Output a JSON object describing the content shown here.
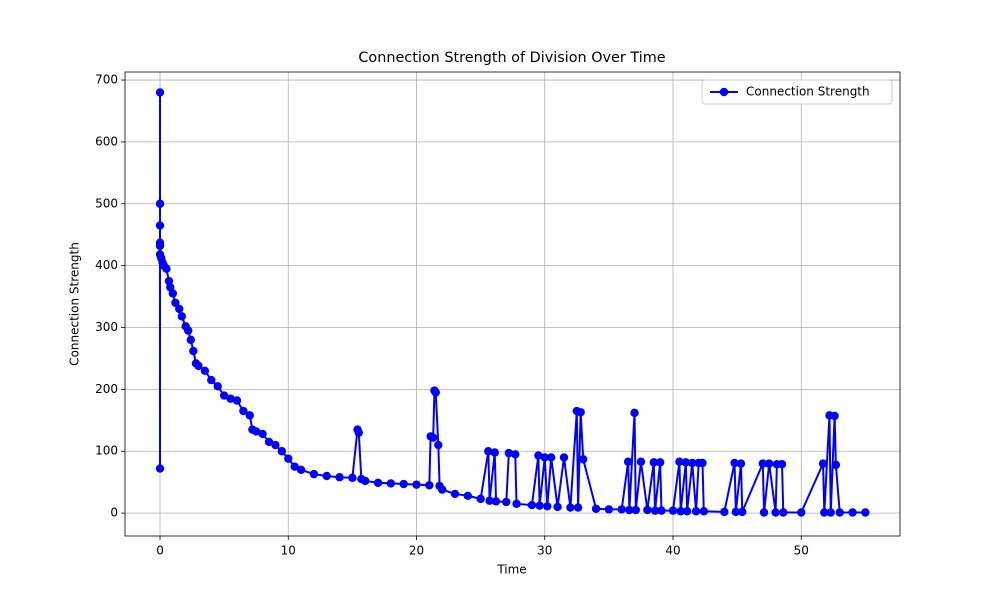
{
  "chart_data": {
    "type": "line",
    "title": "Connection Strength of Division Over Time",
    "x_label": "Time",
    "y_label": "Connection Strength",
    "x": [
      0,
      0,
      0,
      0,
      0,
      0,
      0,
      0.1,
      0.2,
      0.3,
      0.5,
      0.7,
      0.8,
      1.0,
      1.2,
      1.5,
      1.7,
      2.0,
      2.2,
      2.4,
      2.6,
      2.8,
      3.0,
      3.5,
      4.0,
      4.5,
      5.0,
      5.5,
      6.0,
      6.5,
      7.0,
      7.2,
      7.5,
      8.0,
      8.5,
      9.0,
      9.5,
      10.0,
      10.5,
      11,
      12,
      13,
      14,
      15,
      15.4,
      15.5,
      15.7,
      16,
      17,
      18,
      19,
      20,
      21,
      21.1,
      21.3,
      21.4,
      21.5,
      21.7,
      21.8,
      22,
      23,
      24,
      25,
      25.6,
      25.7,
      26.1,
      26.2,
      27,
      27.2,
      27.7,
      27.8,
      29,
      29.5,
      29.6,
      30,
      30.2,
      30.5,
      31,
      31.5,
      32,
      32.5,
      32.6,
      32.8,
      33,
      34,
      35,
      36,
      36.5,
      36.6,
      37,
      37.1,
      37.5,
      38,
      38.5,
      38.6,
      39,
      39.1,
      40,
      40.5,
      40.6,
      41,
      41.1,
      41.5,
      41.8,
      42,
      42.3,
      42.4,
      44,
      44.8,
      44.9,
      45.3,
      45.4,
      47,
      47.1,
      47.5,
      48,
      48.1,
      48.5,
      48.6,
      50,
      51.7,
      51.8,
      52.2,
      52.3,
      52.6,
      52.7,
      53,
      54,
      55
    ],
    "series": [
      {
        "name": "Connection Strength",
        "color": "#0000ff",
        "values": [
          680,
          72,
          500,
          465,
          437,
          432,
          418,
          412,
          405,
          400,
          395,
          375,
          365,
          355,
          340,
          330,
          318,
          302,
          295,
          280,
          262,
          242,
          238,
          230,
          215,
          205,
          190,
          185,
          182,
          165,
          158,
          135,
          132,
          128,
          115,
          110,
          100,
          88,
          75,
          70,
          63,
          60,
          58,
          57,
          135,
          130,
          55,
          52,
          49,
          48,
          47,
          46,
          45,
          124,
          122,
          198,
          195,
          110,
          44,
          38,
          31,
          28,
          23,
          100,
          20,
          98,
          19,
          18,
          97,
          95,
          15,
          13,
          93,
          12,
          90,
          11,
          90,
          10,
          90,
          9,
          165,
          9,
          163,
          87,
          7,
          6,
          6,
          83,
          5,
          162,
          5,
          83,
          5,
          82,
          4,
          82,
          4,
          4,
          83,
          3,
          82,
          3,
          81,
          3,
          81,
          81,
          3,
          2,
          81,
          2,
          80,
          2,
          80,
          1,
          80,
          1,
          79,
          79,
          1,
          1,
          80,
          1,
          158,
          1,
          157,
          78,
          1,
          1,
          1
        ]
      }
    ],
    "xlim": [
      -2.73,
      57.7
    ],
    "ylim": [
      -37,
      713
    ],
    "xticks": [
      0,
      10,
      20,
      30,
      40,
      50
    ],
    "yticks": [
      0,
      100,
      200,
      300,
      400,
      500,
      600,
      700
    ],
    "grid": true,
    "legend": "upper right"
  }
}
